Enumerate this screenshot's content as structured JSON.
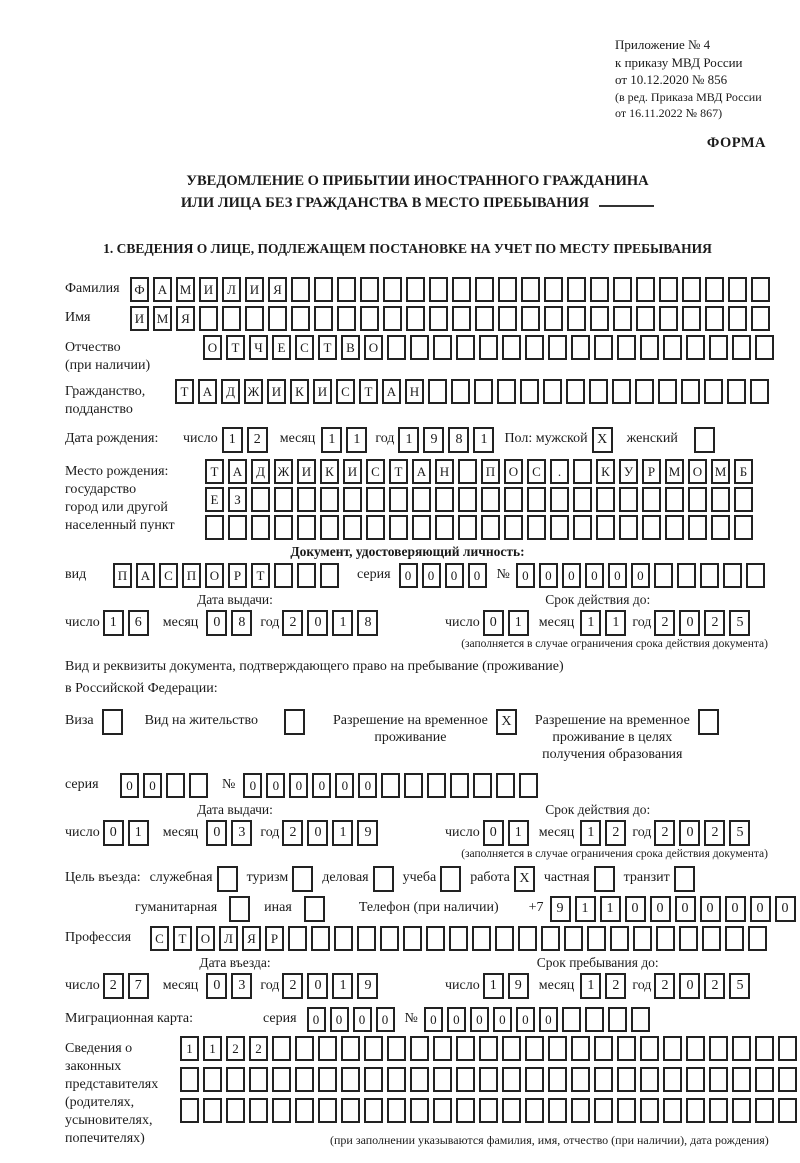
{
  "header": {
    "line1": "Приложение № 4",
    "line2": "к приказу МВД России",
    "line3": "от 10.12.2020 № 856",
    "line4": "(в ред. Приказа МВД России",
    "line5": "от 16.11.2022 № 867)",
    "forma": "ФОРМА"
  },
  "title": {
    "line1": "УВЕДОМЛЕНИЕ О ПРИБЫТИИ ИНОСТРАННОГО ГРАЖДАНИНА",
    "line2": "ИЛИ ЛИЦА БЕЗ ГРАЖДАНСТВА В МЕСТО ПРЕБЫВАНИЯ"
  },
  "section1": {
    "heading": "1. СВЕДЕНИЯ О ЛИЦЕ, ПОДЛЕЖАЩЕМ ПОСТАНОВКЕ НА УЧЕТ ПО МЕСТУ ПРЕБЫВАНИЯ",
    "surname": {
      "label": "Фамилия",
      "cells": {
        "text": "ФАМИЛИЯ",
        "count": 28
      }
    },
    "firstname": {
      "label": "Имя",
      "cells": {
        "text": "ИМЯ",
        "count": 28
      }
    },
    "patronymic": {
      "label_line1": "Отчество",
      "label_line2": "(при наличии)",
      "cells": {
        "text": "ОТЧЕСТВО",
        "count": 25
      }
    },
    "citizenship": {
      "label_line1": "Гражданство,",
      "label_line2": "подданство",
      "cells": {
        "text": "ТАДЖИКИСТАН",
        "count": 26
      }
    },
    "birth_date": {
      "label": "Дата рождения:",
      "day_label": "число",
      "day": {
        "text": "12",
        "count": 2
      },
      "month_label": "месяц",
      "month": {
        "text": "11",
        "count": 2
      },
      "year_label": "год",
      "year": {
        "text": "1981",
        "count": 4
      },
      "sex_label": "Пол: мужской",
      "male_box": {
        "text": "X",
        "count": 1
      },
      "female_label": "женский",
      "female_box": {
        "text": "",
        "count": 1
      }
    },
    "birth_place": {
      "label_line1": "Место рождения:",
      "label_line2": "государство",
      "label_line3": "город или другой",
      "label_line4": "населенный пункт",
      "row1": {
        "text": "ТАДЖИКИСТАН ПОС. КУРМОМБ",
        "count": 24
      },
      "row2": {
        "text": "ЕЗ",
        "count": 24
      },
      "row3": {
        "text": "",
        "count": 24
      }
    },
    "identity_doc": {
      "heading": "Документ, удостоверяющий личность:",
      "type_label": "вид",
      "type_cells": {
        "text": "ПАСПОРТ",
        "count": 10
      },
      "series_label": "серия",
      "series_cells": {
        "text": "0000",
        "count": 4
      },
      "number_label": "№",
      "number_cells": {
        "text": "000000",
        "count": 11
      },
      "issue": {
        "header": "Дата выдачи:",
        "day_label": "число",
        "day": {
          "text": "16",
          "count": 2
        },
        "month_label": "месяц",
        "month": {
          "text": "08",
          "count": 2
        },
        "year_label": "год",
        "year": {
          "text": "2018",
          "count": 4
        }
      },
      "valid": {
        "header": "Срок действия до:",
        "day_label": "число",
        "day": {
          "text": "01",
          "count": 2
        },
        "month_label": "месяц",
        "month": {
          "text": "11",
          "count": 2
        },
        "year_label": "год",
        "year": {
          "text": "2025",
          "count": 4
        }
      },
      "note": "(заполняется в случае ограничения срока действия документа)"
    },
    "residence_doc": {
      "intro_line1": "Вид и реквизиты документа, подтверждающего право на пребывание (проживание)",
      "intro_line2": "в Российской Федерации:",
      "visa_label": "Виза",
      "visa_box": {
        "text": "",
        "count": 1
      },
      "residence_permit_label": "Вид на жительство",
      "residence_permit_box": {
        "text": "",
        "count": 1
      },
      "temp_permit_label_line1": "Разрешение на временное",
      "temp_permit_label_line2": "проживание",
      "temp_permit_box": {
        "text": "X",
        "count": 1
      },
      "edu_permit_label_line1": "Разрешение на временное",
      "edu_permit_label_line2": "проживание в целях",
      "edu_permit_label_line3": "получения образования",
      "edu_permit_box": {
        "text": "",
        "count": 1
      },
      "series_label": "серия",
      "series_cells": {
        "text": "00",
        "count": 4
      },
      "number_label": "№",
      "number_cells": {
        "text": "000000",
        "count": 13
      },
      "issue": {
        "header": "Дата выдачи:",
        "day_label": "число",
        "day": {
          "text": "01",
          "count": 2
        },
        "month_label": "месяц",
        "month": {
          "text": "03",
          "count": 2
        },
        "year_label": "год",
        "year": {
          "text": "2019",
          "count": 4
        }
      },
      "valid": {
        "header": "Срок действия до:",
        "day_label": "число",
        "day": {
          "text": "01",
          "count": 2
        },
        "month_label": "месяц",
        "month": {
          "text": "12",
          "count": 2
        },
        "year_label": "год",
        "year": {
          "text": "2025",
          "count": 4
        }
      },
      "note": "(заполняется в случае ограничения срока действия документа)"
    },
    "visit_purpose": {
      "label": "Цель въезда:",
      "options_row1": [
        {
          "label": "служебная",
          "box": {
            "text": "",
            "count": 1
          }
        },
        {
          "label": "туризм",
          "box": {
            "text": "",
            "count": 1
          }
        },
        {
          "label": "деловая",
          "box": {
            "text": "",
            "count": 1
          }
        },
        {
          "label": "учеба",
          "box": {
            "text": "",
            "count": 1
          }
        },
        {
          "label": "работа",
          "box": {
            "text": "X",
            "count": 1
          }
        },
        {
          "label": "частная",
          "box": {
            "text": "",
            "count": 1
          }
        },
        {
          "label": "транзит",
          "box": {
            "text": "",
            "count": 1
          }
        }
      ],
      "options_row2": [
        {
          "label": "гуманитарная",
          "box": {
            "text": "",
            "count": 1
          }
        },
        {
          "label": "иная",
          "box": {
            "text": "",
            "count": 1
          }
        }
      ],
      "phone_label": "Телефон (при наличии)",
      "phone_prefix": "+7",
      "phone_cells": {
        "text": "9110000000",
        "count": 10
      }
    },
    "profession": {
      "label": "Профессия",
      "cells": {
        "text": "СТОЛЯР",
        "count": 27
      }
    },
    "entry_dates": {
      "entry": {
        "header": "Дата въезда:",
        "day_label": "число",
        "day": {
          "text": "27",
          "count": 2
        },
        "month_label": "месяц",
        "month": {
          "text": "03",
          "count": 2
        },
        "year_label": "год",
        "year": {
          "text": "2019",
          "count": 4
        }
      },
      "stay": {
        "header": "Срок пребывания до:",
        "day_label": "число",
        "day": {
          "text": "19",
          "count": 2
        },
        "month_label": "месяц",
        "month": {
          "text": "12",
          "count": 2
        },
        "year_label": "год",
        "year": {
          "text": "2025",
          "count": 4
        }
      }
    },
    "migration_card": {
      "label": "Миграционная карта:",
      "series_label": "серия",
      "series_cells": {
        "text": "0000",
        "count": 4
      },
      "number_label": "№",
      "number_cells": {
        "text": "000000",
        "count": 10
      }
    },
    "representatives": {
      "label_line1": "Сведения о",
      "label_line2": "законных",
      "label_line3": "представителях",
      "label_line4": "(родителях,",
      "label_line5": "усыновителях,",
      "label_line6": "попечителях)",
      "row1": {
        "text": "1122",
        "count": 27
      },
      "row2": {
        "text": "",
        "count": 27
      },
      "row3": {
        "text": "",
        "count": 27
      },
      "note": "(при заполнении указываются фамилия, имя, отчество (при наличии), дата рождения)"
    }
  }
}
